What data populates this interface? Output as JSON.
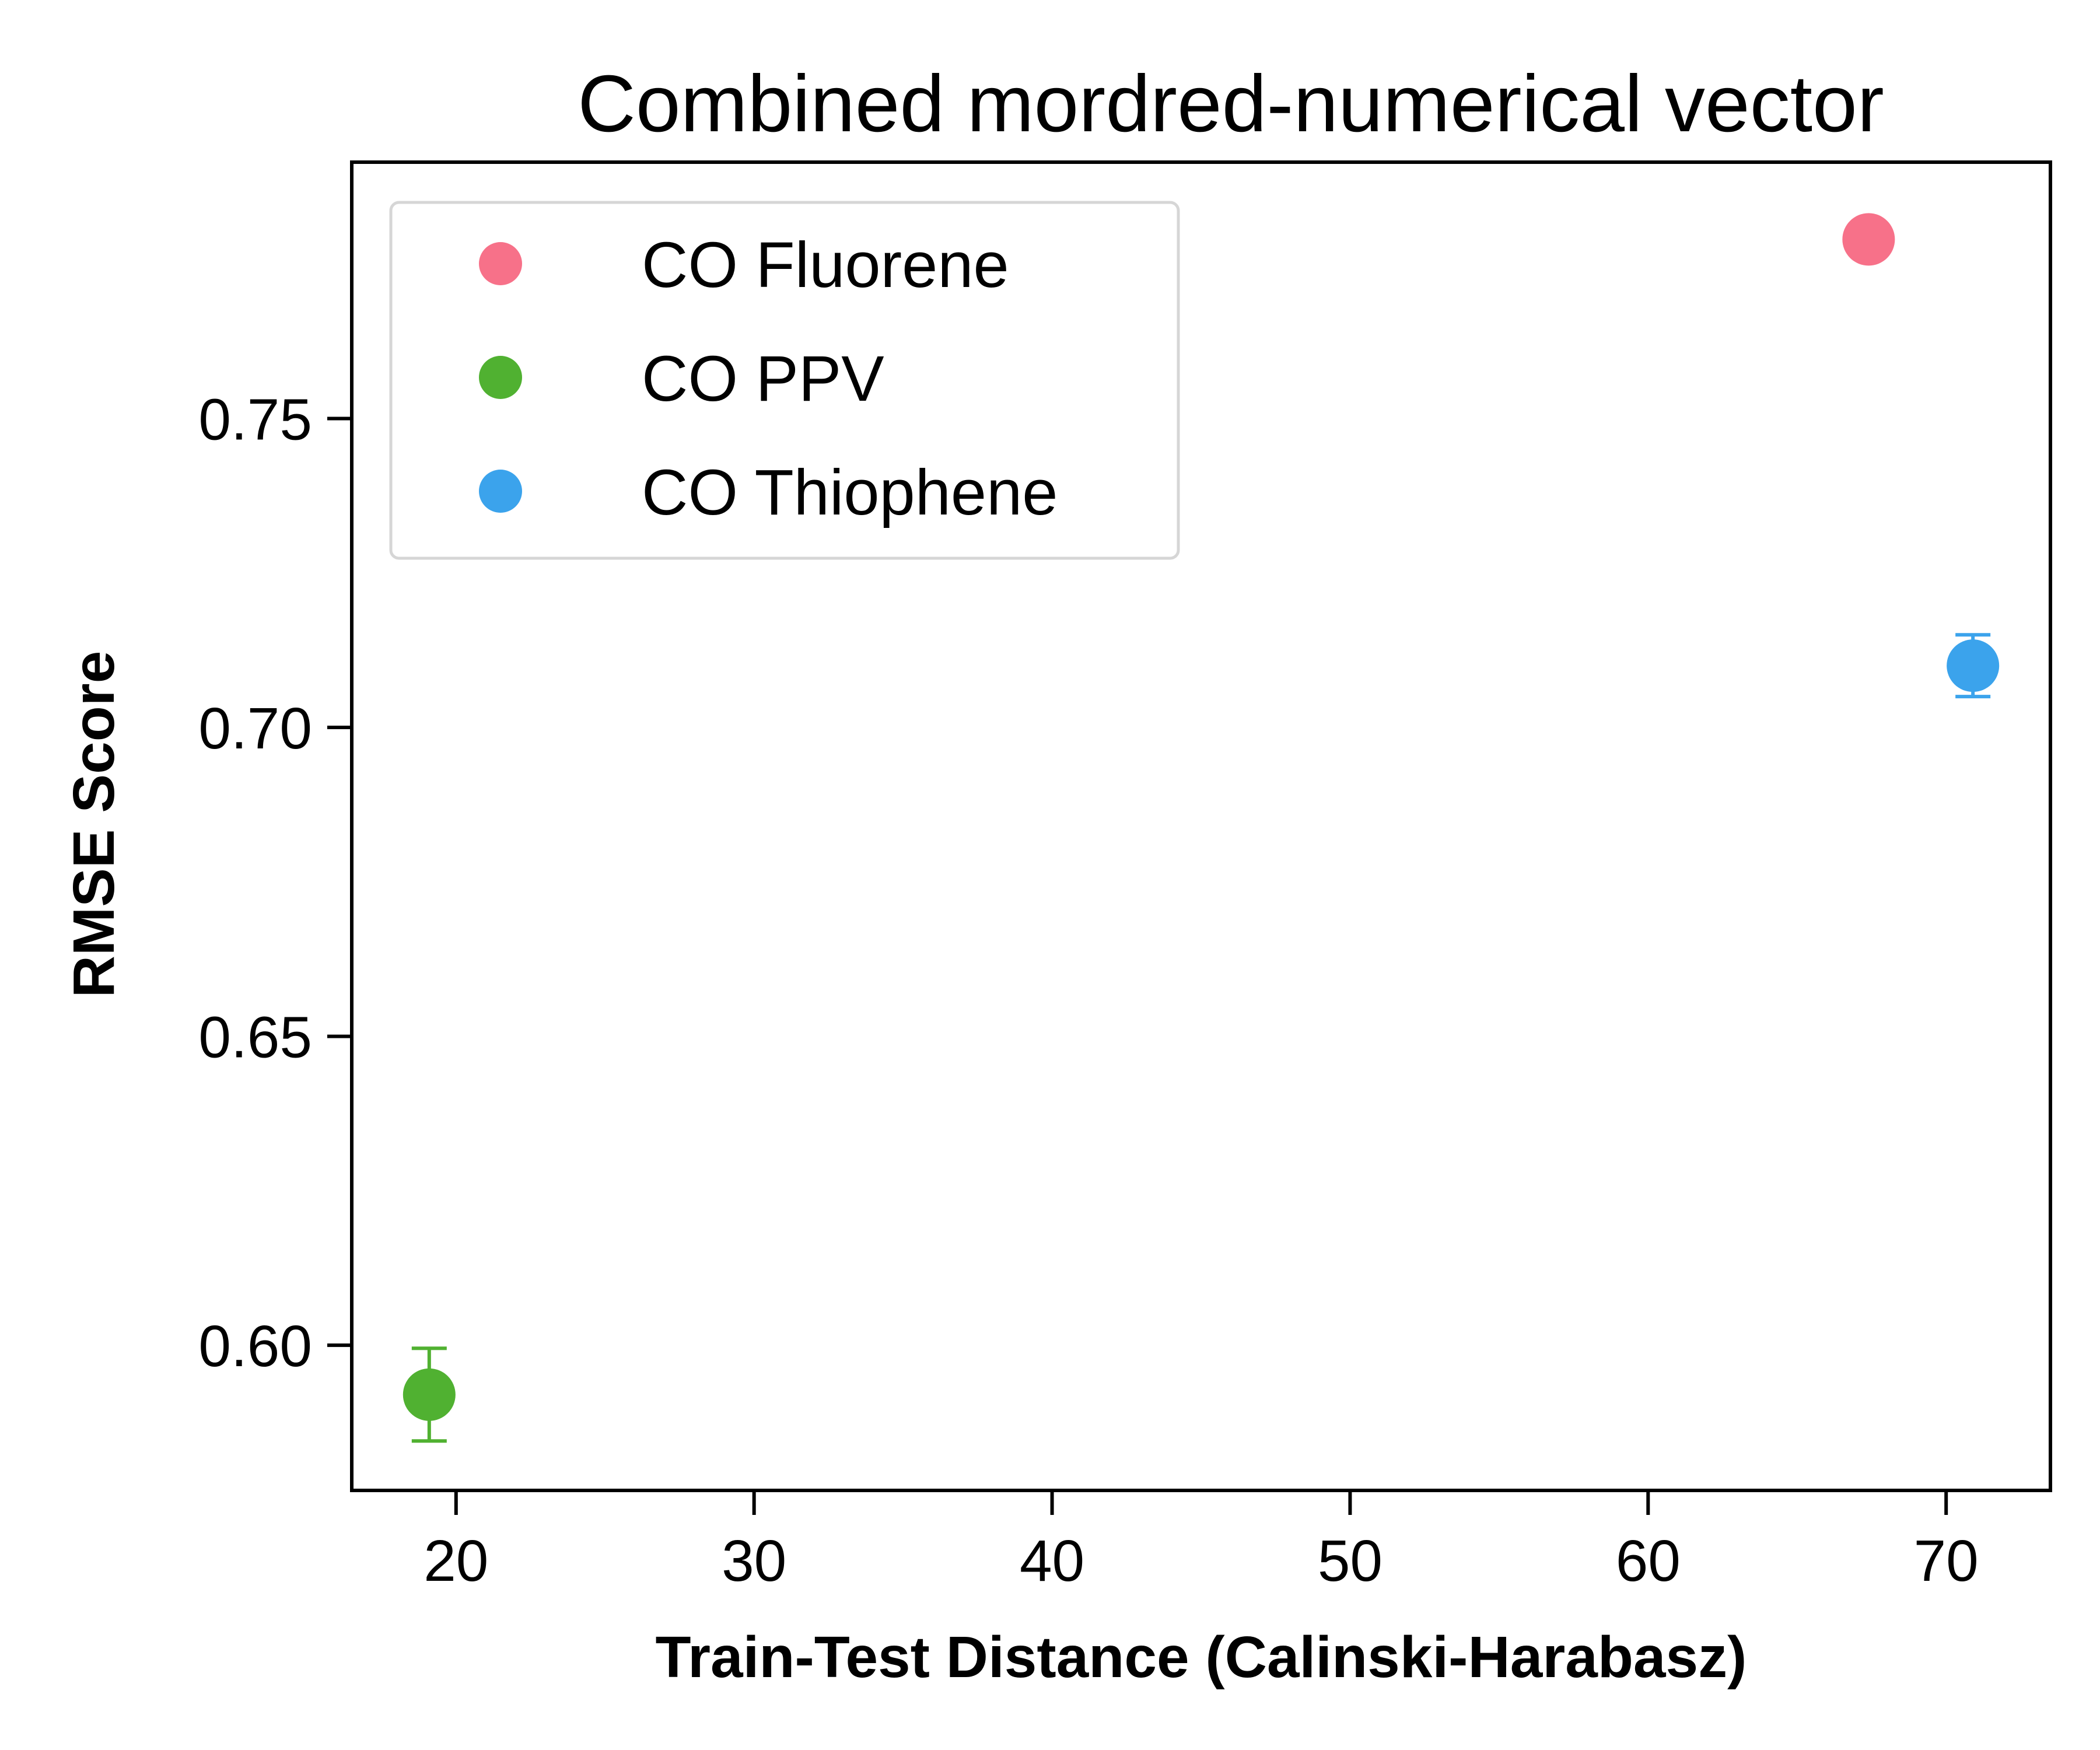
{
  "chart_data": {
    "type": "scatter",
    "title": "Combined mordred-numerical vector",
    "xlabel": "Train-Test Distance (Calinski-Harabasz)",
    "ylabel": "RMSE Score",
    "xlim": [
      16.5,
      73.5
    ],
    "ylim": [
      0.5765,
      0.7915
    ],
    "xticks": [
      20,
      30,
      40,
      50,
      60,
      70
    ],
    "xtick_labels": [
      "20",
      "30",
      "40",
      "50",
      "60",
      "70"
    ],
    "yticks": [
      0.6,
      0.65,
      0.7,
      0.75
    ],
    "ytick_labels": [
      "0.60",
      "0.65",
      "0.70",
      "0.75"
    ],
    "grid": false,
    "legend_position": "upper-left",
    "series": [
      {
        "name": "CO Fluorene",
        "color": "#f77189",
        "x": 67.4,
        "y": 0.779,
        "yerr": 0.0
      },
      {
        "name": "CO PPV",
        "color": "#50b131",
        "x": 19.1,
        "y": 0.592,
        "yerr": 0.0075
      },
      {
        "name": "CO Thiophene",
        "color": "#3ba3ec",
        "x": 70.9,
        "y": 0.71,
        "yerr": 0.005
      }
    ]
  }
}
